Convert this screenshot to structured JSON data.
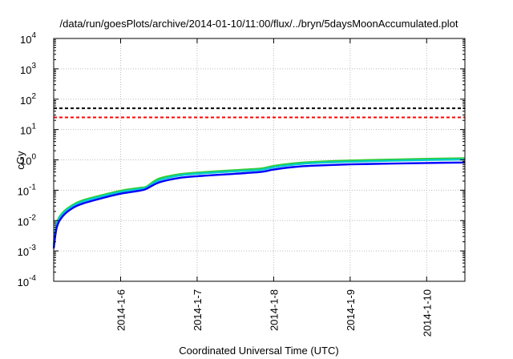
{
  "chart_data": {
    "type": "line",
    "title": "/data/run/goesPlots/archive/2014-01-10/11:00/flux/../bryn/5daysMoonAccumulated.plot",
    "xlabel": "Coordinated Universal Time (UTC)",
    "ylabel": "cGy",
    "yscale": "log",
    "xlim": [
      "2014-01-05T03:00",
      "2014-01-10T12:00"
    ],
    "ylim": [
      0.0001,
      10000
    ],
    "x_ticks": [
      "2014-01-06",
      "2014-01-07",
      "2014-01-08",
      "2014-01-09",
      "2014-01-10"
    ],
    "x_tick_labels": [
      "2014-1-6",
      "2014-1-7",
      "2014-1-8",
      "2014-1-9",
      "2014-1-10"
    ],
    "y_ticks": [
      {
        "base": "10",
        "exp": "-4",
        "value": 0.0001
      },
      {
        "base": "10",
        "exp": "-3",
        "value": 0.001
      },
      {
        "base": "10",
        "exp": "-2",
        "value": 0.01
      },
      {
        "base": "10",
        "exp": "-1",
        "value": 0.1
      },
      {
        "base": "10",
        "exp": "0",
        "value": 1
      },
      {
        "base": "10",
        "exp": "1",
        "value": 10
      },
      {
        "base": "10",
        "exp": "2",
        "value": 100
      },
      {
        "base": "10",
        "exp": "3",
        "value": 1000
      },
      {
        "base": "10",
        "exp": "4",
        "value": 10000
      }
    ],
    "grid": true,
    "legend": "none",
    "thresholds": [
      {
        "value": 50,
        "color": "#000000",
        "style": "dashed"
      },
      {
        "value": 25,
        "color": "#ff0000",
        "style": "dashed"
      }
    ],
    "series": [
      {
        "color": "#33cc33",
        "x": [
          "2014-01-05T03:00",
          "2014-01-05T04:00",
          "2014-01-05T06:00",
          "2014-01-05T09:00",
          "2014-01-05T12:00",
          "2014-01-05T18:00",
          "2014-01-06T00:00",
          "2014-01-06T06:00",
          "2014-01-06T08:00",
          "2014-01-06T12:00",
          "2014-01-06T18:00",
          "2014-01-07T00:00",
          "2014-01-07T12:00",
          "2014-01-07T20:00",
          "2014-01-08T00:00",
          "2014-01-08T06:00",
          "2014-01-08T12:00",
          "2014-01-09T00:00",
          "2014-01-09T12:00",
          "2014-01-10T00:00",
          "2014-01-10T12:00"
        ],
        "y": [
          0.0017,
          0.0085,
          0.019,
          0.033,
          0.046,
          0.068,
          0.096,
          0.12,
          0.13,
          0.24,
          0.33,
          0.38,
          0.46,
          0.52,
          0.63,
          0.76,
          0.85,
          0.95,
          1.02,
          1.08,
          1.13
        ]
      },
      {
        "color": "#00cccc",
        "x": [
          "2014-01-05T03:00",
          "2014-01-05T04:00",
          "2014-01-05T06:00",
          "2014-01-05T09:00",
          "2014-01-05T12:00",
          "2014-01-05T18:00",
          "2014-01-06T00:00",
          "2014-01-06T06:00",
          "2014-01-06T08:00",
          "2014-01-06T12:00",
          "2014-01-06T18:00",
          "2014-01-07T00:00",
          "2014-01-07T12:00",
          "2014-01-07T20:00",
          "2014-01-08T00:00",
          "2014-01-08T06:00",
          "2014-01-08T12:00",
          "2014-01-09T00:00",
          "2014-01-09T12:00",
          "2014-01-10T00:00",
          "2014-01-10T12:00"
        ],
        "y": [
          0.0015,
          0.0075,
          0.017,
          0.03,
          0.042,
          0.062,
          0.088,
          0.11,
          0.12,
          0.21,
          0.3,
          0.35,
          0.42,
          0.47,
          0.57,
          0.69,
          0.78,
          0.87,
          0.93,
          0.99,
          1.03
        ]
      },
      {
        "color": "#0000ff",
        "x": [
          "2014-01-05T03:00",
          "2014-01-05T04:00",
          "2014-01-05T06:00",
          "2014-01-05T09:00",
          "2014-01-05T12:00",
          "2014-01-05T18:00",
          "2014-01-06T00:00",
          "2014-01-06T06:00",
          "2014-01-06T08:00",
          "2014-01-06T12:00",
          "2014-01-06T18:00",
          "2014-01-07T00:00",
          "2014-01-07T12:00",
          "2014-01-07T20:00",
          "2014-01-08T00:00",
          "2014-01-08T06:00",
          "2014-01-08T12:00",
          "2014-01-09T00:00",
          "2014-01-09T12:00",
          "2014-01-10T00:00",
          "2014-01-10T12:00"
        ],
        "y": [
          0.0012,
          0.0062,
          0.0145,
          0.026,
          0.036,
          0.054,
          0.077,
          0.097,
          0.11,
          0.18,
          0.25,
          0.29,
          0.35,
          0.4,
          0.48,
          0.58,
          0.64,
          0.71,
          0.75,
          0.79,
          0.82
        ]
      }
    ]
  }
}
